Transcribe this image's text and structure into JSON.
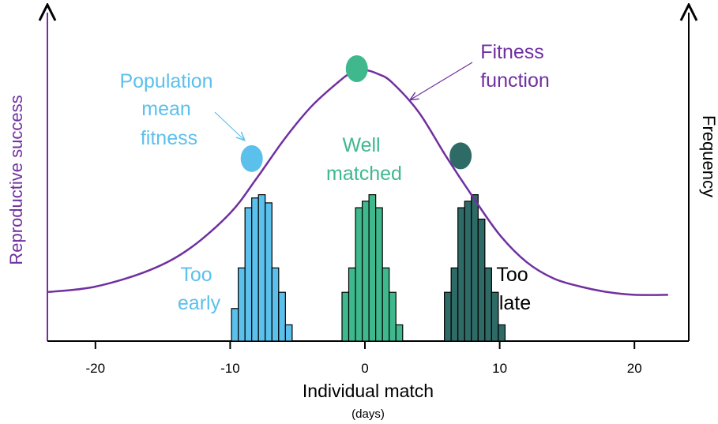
{
  "axes": {
    "x_label": "Individual match",
    "x_unit": "(days)",
    "left_label": "Reproductive success",
    "right_label": "Frequency",
    "ticks": [
      "-20",
      "-10",
      "0",
      "10",
      "20"
    ]
  },
  "labels": {
    "population_mean": [
      "Population",
      "mean",
      "fitness"
    ],
    "fitness_function": [
      "Fitness",
      "function"
    ],
    "well_matched": [
      "Well",
      "matched"
    ],
    "too_early": [
      "Too",
      "early"
    ],
    "too_late": [
      "Too",
      "late"
    ]
  },
  "colors": {
    "curve": "#7030a0",
    "early": "#5bc0eb",
    "well": "#3fb88e",
    "late": "#2f6b66",
    "axis": "#000000"
  },
  "chart_data": {
    "type": "bar",
    "xlim": [
      -23.5,
      22.5
    ],
    "tick_values": [
      -20,
      -10,
      0,
      10,
      20
    ],
    "fitness_function": {
      "x": [
        -23.5,
        -20,
        -16,
        -13,
        -10,
        -8,
        -6,
        -4,
        -2,
        -1,
        0,
        1,
        2,
        4,
        6,
        8,
        10,
        12,
        14,
        16,
        18,
        20,
        22.5
      ],
      "y": [
        0.18,
        0.2,
        0.26,
        0.34,
        0.47,
        0.6,
        0.74,
        0.86,
        0.95,
        0.985,
        0.995,
        0.98,
        0.95,
        0.84,
        0.68,
        0.53,
        0.39,
        0.29,
        0.23,
        0.2,
        0.18,
        0.17,
        0.17
      ]
    },
    "points": [
      {
        "name": "population mean fitness",
        "x": -8.4,
        "y": 0.67
      },
      {
        "name": "well matched",
        "x": -0.6,
        "y": 1.0
      },
      {
        "name": "too late",
        "x": 7.1,
        "y": 0.68
      }
    ],
    "histograms": [
      {
        "name": "Too early",
        "bin_start": -9.9,
        "bin_width": 0.5,
        "values": [
          0.2,
          0.45,
          0.82,
          0.88,
          0.9,
          0.85,
          0.45,
          0.3,
          0.1
        ]
      },
      {
        "name": "Well matched",
        "bin_start": -1.7,
        "bin_width": 0.5,
        "values": [
          0.3,
          0.45,
          0.82,
          0.86,
          0.9,
          0.82,
          0.45,
          0.3,
          0.1
        ]
      },
      {
        "name": "Too late",
        "bin_start": 5.9,
        "bin_width": 0.5,
        "values": [
          0.3,
          0.45,
          0.82,
          0.86,
          0.9,
          0.75,
          0.45,
          0.3,
          0.1
        ]
      }
    ]
  }
}
